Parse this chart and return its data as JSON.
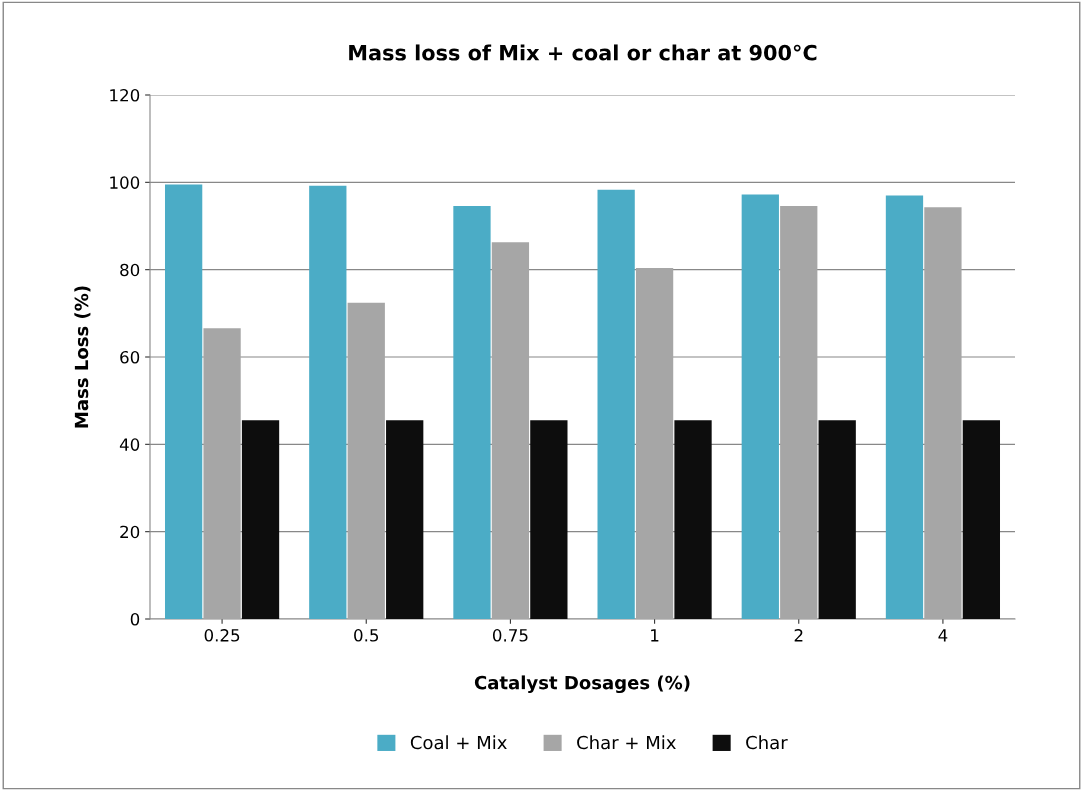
{
  "chart_data": {
    "type": "bar",
    "title": "Mass loss of Mix + coal or char at 900°C",
    "xlabel": "Catalyst Dosages (%)",
    "ylabel": "Mass Loss (%)",
    "categories": [
      "0.25",
      "0.5",
      "0.75",
      "1",
      "2",
      "4"
    ],
    "series": [
      {
        "name": "Coal + Mix",
        "color": "#4bacc6",
        "values": [
          99.5,
          99.2,
          94.6,
          98.3,
          97.2,
          97.0
        ]
      },
      {
        "name": "Char + Mix",
        "color": "#a6a6a6",
        "values": [
          66.6,
          72.4,
          86.3,
          80.4,
          94.6,
          94.3
        ]
      },
      {
        "name": "Char",
        "color": "#0d0d0d",
        "values": [
          45.5,
          45.5,
          45.5,
          45.5,
          45.5,
          45.5
        ]
      }
    ],
    "ylim": [
      0,
      120
    ],
    "yticks": [
      0,
      20,
      40,
      60,
      80,
      100,
      120
    ],
    "grid": "y",
    "legend": "bottom"
  }
}
